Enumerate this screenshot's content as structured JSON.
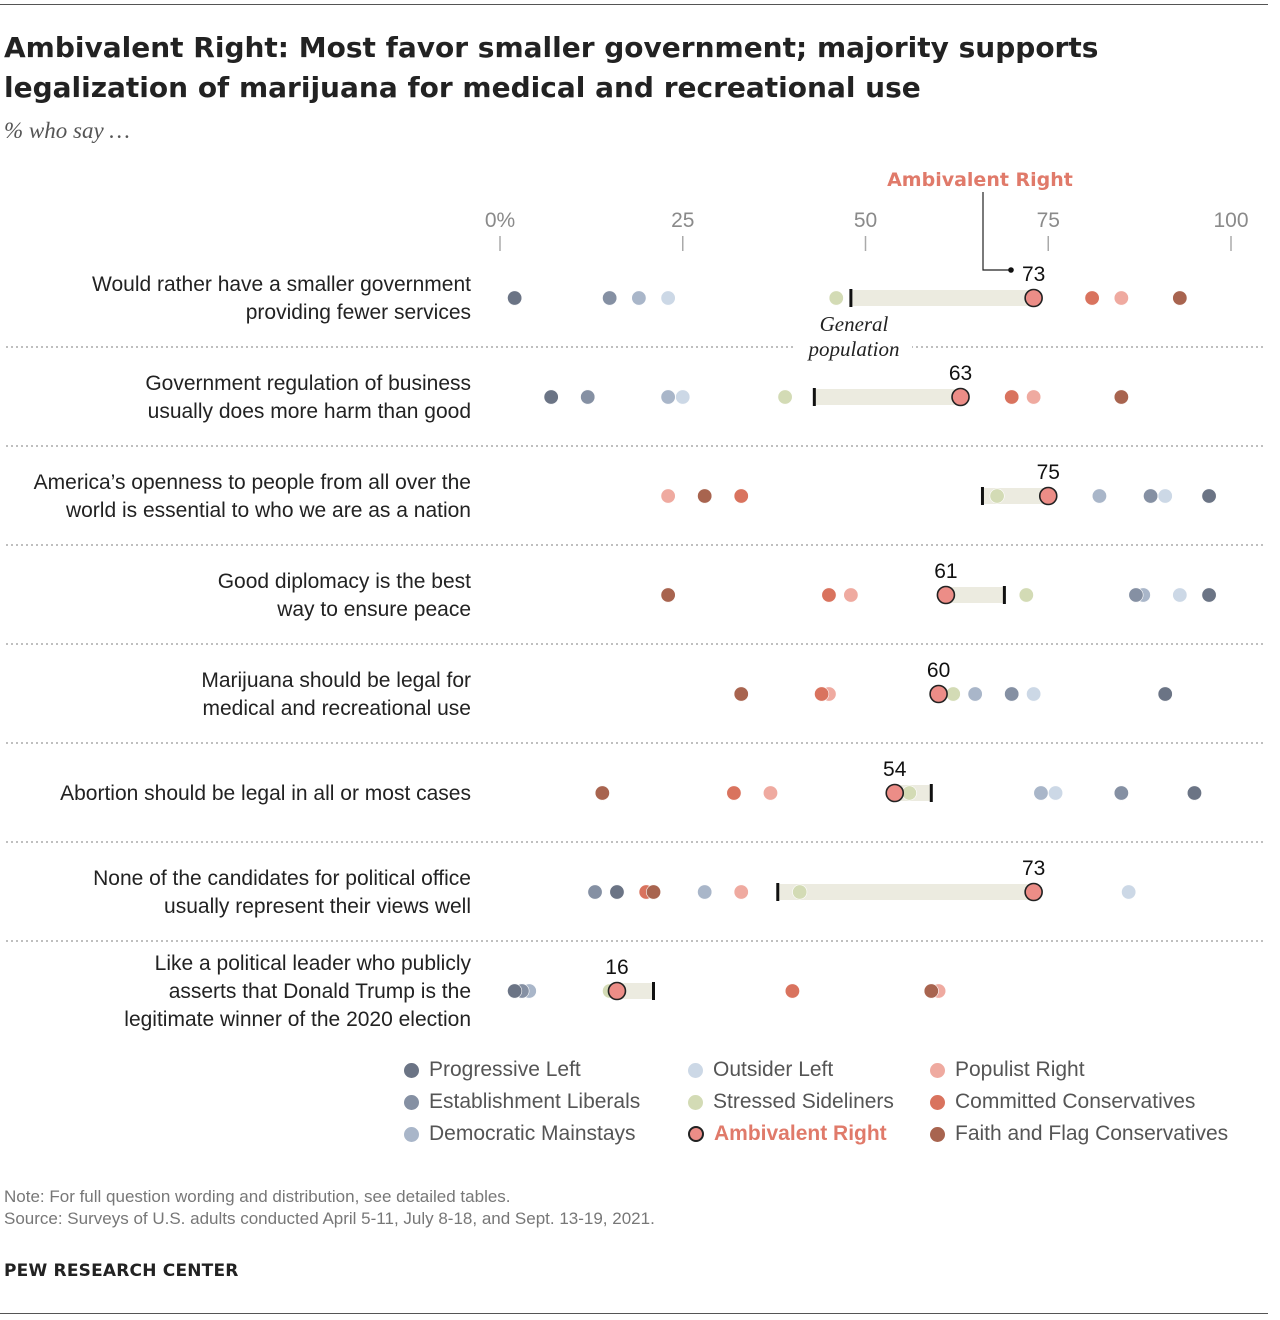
{
  "title": "Ambivalent Right: Most favor smaller government; majority supports legalization of marijuana for medical and recreational use",
  "subtitle": "% who say …",
  "note": "Note: For full question wording and distribution, see detailed tables.",
  "source": "Source: Surveys of U.S. adults conducted April 5-11, July 8-18, and Sept. 13-19, 2021.",
  "brand": "PEW RESEARCH CENTER",
  "annotations": {
    "highlight_label": "Ambivalent Right",
    "general_population": [
      "General",
      "population"
    ]
  },
  "colors": {
    "Progressive Left": "#6b7485",
    "Establishment Liberals": "#8590a3",
    "Democratic Mainstays": "#a9b6c9",
    "Outsider Left": "#ccd8e6",
    "Stressed Sideliners": "#d3dbb5",
    "Ambivalent Right": "#ec8d87",
    "Populist Right": "#efaaa0",
    "Committed Conservatives": "#d9735e",
    "Faith and Flag Conservatives": "#a8644f",
    "highlight_text": "#e07a6a",
    "gap_bar": "#ecebe0"
  },
  "legend": [
    {
      "name": "Progressive Left"
    },
    {
      "name": "Establishment Liberals"
    },
    {
      "name": "Democratic Mainstays"
    },
    {
      "name": "Outsider Left"
    },
    {
      "name": "Stressed Sideliners"
    },
    {
      "name": "Ambivalent Right"
    },
    {
      "name": "Populist Right"
    },
    {
      "name": "Committed Conservatives"
    },
    {
      "name": "Faith and Flag Conservatives"
    }
  ],
  "chart_data": {
    "type": "scatter",
    "subtype": "dot-plot",
    "xlim": [
      0,
      100
    ],
    "x_ticks": [
      "0%",
      "25",
      "50",
      "75",
      "100"
    ],
    "x_tick_values": [
      0,
      25,
      50,
      75,
      100
    ],
    "highlight_series": "Ambivalent Right",
    "reference_series": "General population",
    "rows": [
      {
        "label": [
          "Would rather have a smaller government",
          "providing fewer services"
        ],
        "general_population": 48,
        "label_value": "73",
        "values": {
          "Progressive Left": 2,
          "Establishment Liberals": 15,
          "Democratic Mainstays": 19,
          "Outsider Left": 23,
          "Stressed Sideliners": 46,
          "Ambivalent Right": 73,
          "Populist Right": 85,
          "Committed Conservatives": 81,
          "Faith and Flag Conservatives": 93
        }
      },
      {
        "label": [
          "Government regulation of business",
          "usually does more harm than good"
        ],
        "general_population": 43,
        "label_value": "63",
        "values": {
          "Progressive Left": 7,
          "Establishment Liberals": 12,
          "Democratic Mainstays": 23,
          "Outsider Left": 25,
          "Stressed Sideliners": 39,
          "Ambivalent Right": 63,
          "Populist Right": 73,
          "Committed Conservatives": 70,
          "Faith and Flag Conservatives": 85
        }
      },
      {
        "label": [
          "America’s openness to people from all over the",
          "world is essential to who we are as a nation"
        ],
        "general_population": 66,
        "label_value": "75",
        "values": {
          "Progressive Left": 97,
          "Establishment Liberals": 89,
          "Democratic Mainstays": 82,
          "Outsider Left": 91,
          "Stressed Sideliners": 68,
          "Ambivalent Right": 75,
          "Populist Right": 23,
          "Committed Conservatives": 33,
          "Faith and Flag Conservatives": 28
        }
      },
      {
        "label": [
          "Good diplomacy is the best",
          "way to ensure peace"
        ],
        "general_population": 69,
        "label_value": "61",
        "values": {
          "Progressive Left": 97,
          "Establishment Liberals": 87,
          "Democratic Mainstays": 88,
          "Outsider Left": 93,
          "Stressed Sideliners": 72,
          "Ambivalent Right": 61,
          "Populist Right": 48,
          "Committed Conservatives": 45,
          "Faith and Flag Conservatives": 23
        }
      },
      {
        "label": [
          "Marijuana should be legal for",
          "medical and recreational use"
        ],
        "general_population": 60,
        "label_value": "60",
        "values": {
          "Progressive Left": 91,
          "Establishment Liberals": 70,
          "Democratic Mainstays": 65,
          "Outsider Left": 73,
          "Stressed Sideliners": 62,
          "Ambivalent Right": 60,
          "Populist Right": 45,
          "Committed Conservatives": 44,
          "Faith and Flag Conservatives": 33
        }
      },
      {
        "label": [
          "Abortion should be legal in all or most cases"
        ],
        "general_population": 59,
        "label_value": "54",
        "values": {
          "Progressive Left": 95,
          "Establishment Liberals": 85,
          "Democratic Mainstays": 74,
          "Outsider Left": 76,
          "Stressed Sideliners": 56,
          "Ambivalent Right": 54,
          "Populist Right": 37,
          "Committed Conservatives": 32,
          "Faith and Flag Conservatives": 14
        }
      },
      {
        "label": [
          "None of the candidates for political office",
          "usually represent their views well"
        ],
        "general_population": 38,
        "label_value": "73",
        "values": {
          "Progressive Left": 16,
          "Establishment Liberals": 13,
          "Democratic Mainstays": 28,
          "Outsider Left": 86,
          "Stressed Sideliners": 41,
          "Ambivalent Right": 73,
          "Populist Right": 33,
          "Committed Conservatives": 20,
          "Faith and Flag Conservatives": 21
        }
      },
      {
        "label": [
          "Like a political leader who publicly",
          "asserts that Donald Trump is the",
          "legitimate winner of the 2020 election"
        ],
        "general_population": 21,
        "label_value": "16",
        "values": {
          "Progressive Left": 2,
          "Establishment Liberals": 3,
          "Democratic Mainstays": 4,
          "Outsider Left": 3,
          "Stressed Sideliners": 15,
          "Ambivalent Right": 16,
          "Populist Right": 60,
          "Committed Conservatives": 40,
          "Faith and Flag Conservatives": 59
        }
      }
    ]
  }
}
